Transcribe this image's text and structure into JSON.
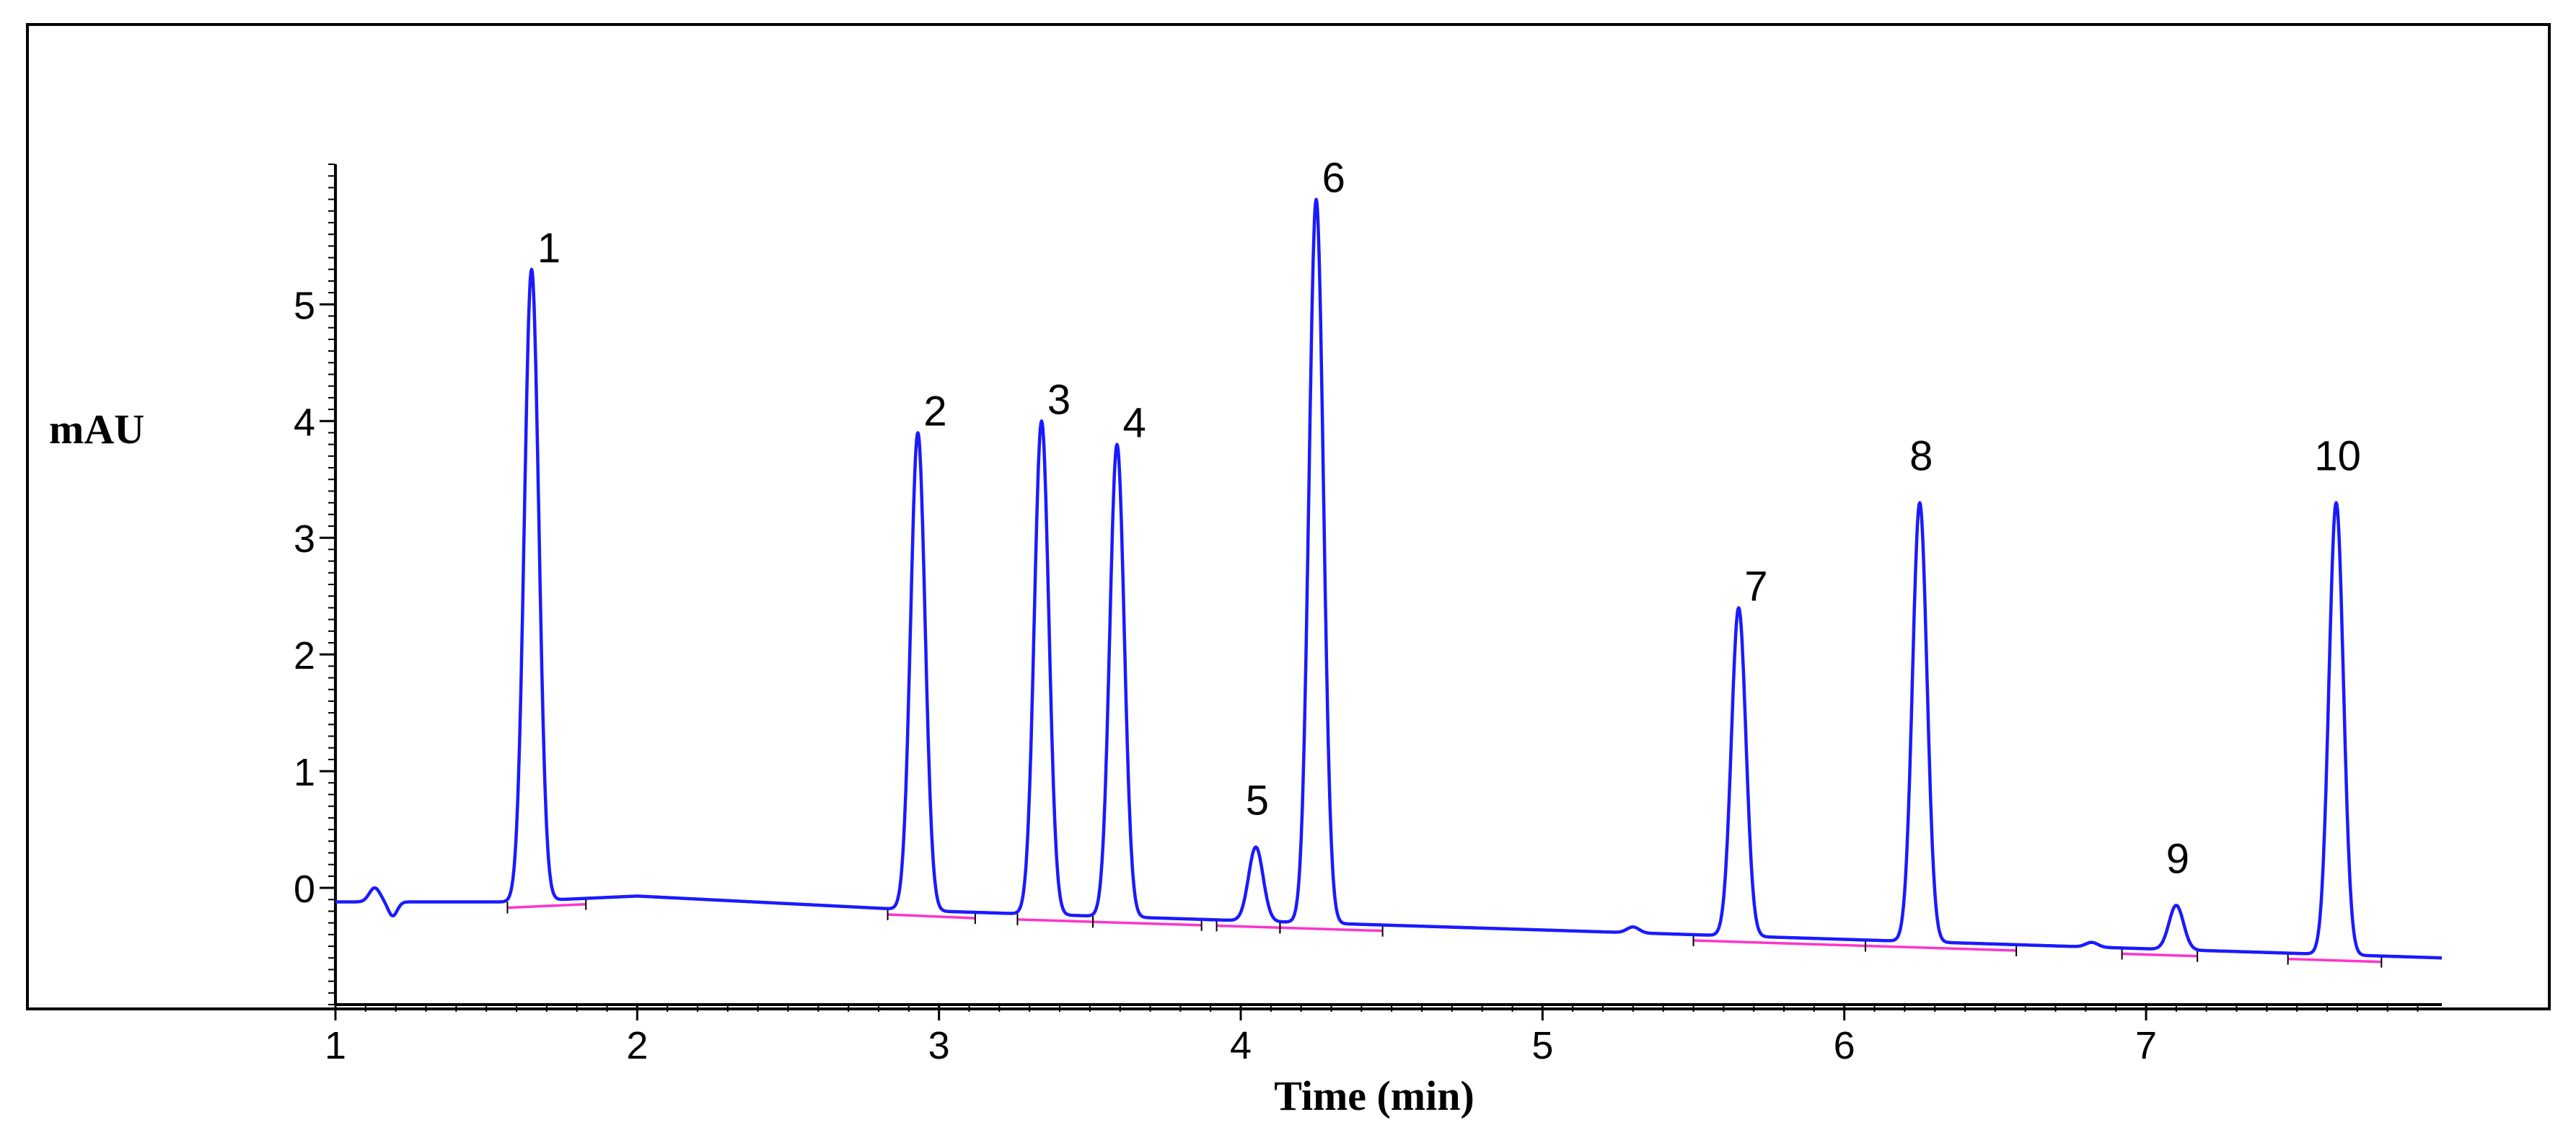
{
  "chart_data": {
    "type": "line",
    "title": "",
    "xlabel": "Time (min)",
    "ylabel": "mAU",
    "xlim": [
      1.0,
      7.98
    ],
    "ylim": [
      -1.0,
      6.2
    ],
    "x_ticks": [
      "1",
      "2",
      "3",
      "4",
      "5",
      "6",
      "7"
    ],
    "y_ticks": [
      "0",
      "1",
      "2",
      "3",
      "4",
      "5"
    ],
    "grid": false,
    "legend": "none",
    "series_color": "#1a1aff",
    "baseline_color": "#ff33cc",
    "peaks": [
      {
        "label": "1",
        "x": 1.65,
        "height": 5.3
      },
      {
        "label": "2",
        "x": 2.93,
        "height": 3.9
      },
      {
        "label": "3",
        "x": 3.34,
        "height": 4.0
      },
      {
        "label": "4",
        "x": 3.59,
        "height": 3.8
      },
      {
        "label": "5",
        "x": 4.05,
        "height": 0.35
      },
      {
        "label": "6",
        "x": 4.25,
        "height": 5.9
      },
      {
        "label": "7",
        "x": 5.65,
        "height": 2.4
      },
      {
        "label": "8",
        "x": 6.25,
        "height": 3.3
      },
      {
        "label": "9",
        "x": 7.1,
        "height": -0.15
      },
      {
        "label": "10",
        "x": 7.63,
        "height": 3.3
      }
    ],
    "baseline_segments": [
      [
        1.57,
        1.83
      ],
      [
        2.83,
        3.12
      ],
      [
        3.26,
        3.51
      ],
      [
        3.51,
        3.87
      ],
      [
        3.92,
        4.13
      ],
      [
        4.13,
        4.47
      ],
      [
        5.5,
        6.07
      ],
      [
        6.07,
        6.57
      ],
      [
        6.92,
        7.17
      ],
      [
        7.47,
        7.78
      ]
    ]
  }
}
